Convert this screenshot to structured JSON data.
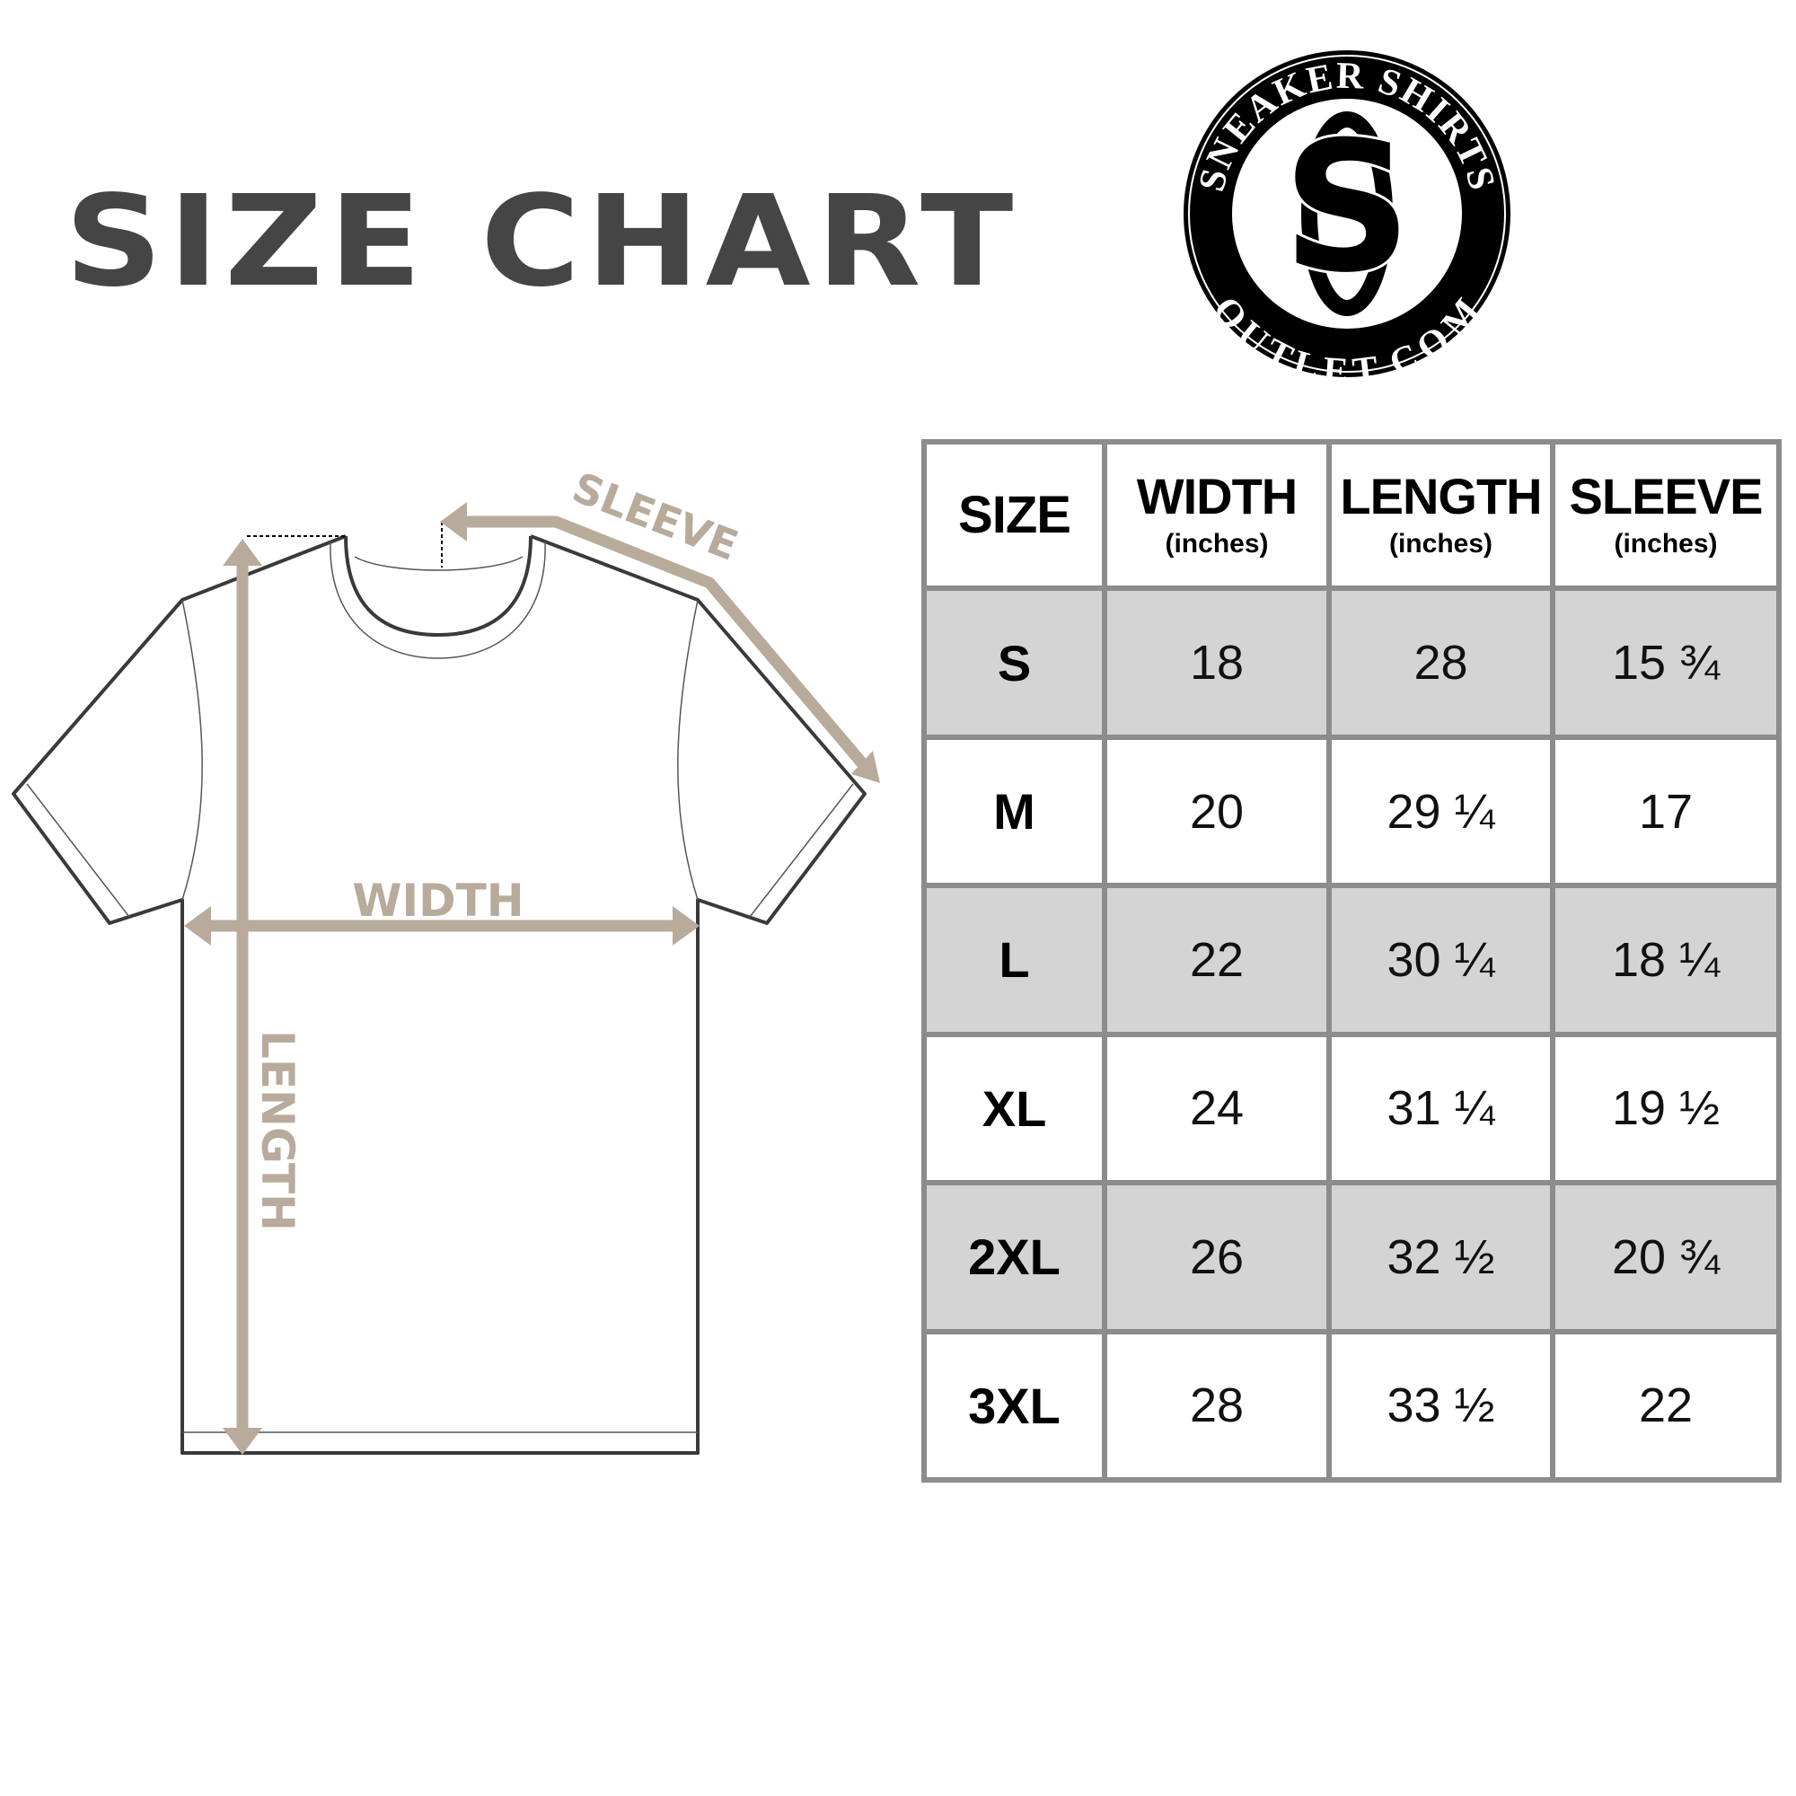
{
  "title": "SIZE CHART",
  "logo": {
    "top_text": "SNEAKER SHIRTS",
    "bottom_text": "OUTLET.COM",
    "monogram": "SO"
  },
  "diagram": {
    "labels": {
      "sleeve": "SLEEVE",
      "width": "WIDTH",
      "length": "LENGTH"
    },
    "arrow_color": "#b8ab9c",
    "outline_color": "#3a3a3a"
  },
  "table": {
    "headers": [
      {
        "label": "SIZE",
        "unit": ""
      },
      {
        "label": "WIDTH",
        "unit": "(inches)"
      },
      {
        "label": "LENGTH",
        "unit": "(inches)"
      },
      {
        "label": "SLEEVE",
        "unit": "(inches)"
      }
    ],
    "rows": [
      [
        "S",
        "18",
        "28",
        "15 ¾"
      ],
      [
        "M",
        "20",
        "29 ¼",
        "17"
      ],
      [
        "L",
        "22",
        "30 ¼",
        "18 ¼"
      ],
      [
        "XL",
        "24",
        "31 ¼",
        "19 ½"
      ],
      [
        "2XL",
        "26",
        "32 ½",
        "20 ¾"
      ],
      [
        "3XL",
        "28",
        "33 ½",
        "22"
      ]
    ],
    "shade_color": "#d4d4d4",
    "border_color": "#8c8c8c"
  }
}
